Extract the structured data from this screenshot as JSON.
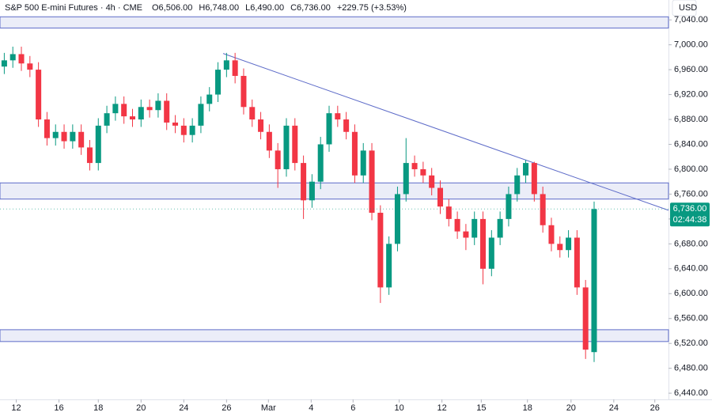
{
  "chart_data": {
    "type": "candlestick",
    "title": "S&P 500 E-mini Futures · 4h · CME",
    "ohlc_labels": [
      "O6,506.00",
      "H6,748.00",
      "L6,490.00",
      "C6,736.00",
      "+229.75 (+3.53%)"
    ],
    "currency": "USD",
    "last_price": {
      "value": 6736,
      "label": "6,736.00"
    },
    "countdown": "02:44:38",
    "up_color": "#089981",
    "down_color": "#f23645",
    "open": [
      6965,
      6975,
      6985,
      6970,
      6960,
      6880,
      6850,
      6860,
      6845,
      6860,
      6835,
      6810,
      6870,
      6890,
      6905,
      6885,
      6880,
      6900,
      6895,
      6910,
      6875,
      6870,
      6855,
      6870,
      6905,
      6920,
      6960,
      6975,
      6950,
      6900,
      6880,
      6860,
      6830,
      6800,
      6870,
      6810,
      6750,
      6780,
      6840,
      6890,
      6880,
      6860,
      6790,
      6830,
      6730,
      6610,
      6680,
      6760,
      6810,
      6800,
      6790,
      6770,
      6740,
      6720,
      6700,
      6690,
      6720,
      6640,
      6690,
      6720,
      6760,
      6790,
      6810,
      6760,
      6710,
      6680,
      6670,
      6690,
      6610,
      6506
    ],
    "high": [
      6987,
      6997,
      6997,
      6982,
      6972,
      6892,
      6872,
      6872,
      6872,
      6872,
      6847,
      6882,
      6902,
      6917,
      6917,
      6897,
      6912,
      6912,
      6922,
      6922,
      6887,
      6882,
      6882,
      6917,
      6932,
      6972,
      6987,
      6987,
      6962,
      6912,
      6892,
      6872,
      6842,
      6882,
      6882,
      6822,
      6792,
      6852,
      6902,
      6902,
      6892,
      6872,
      6842,
      6842,
      6742,
      6692,
      6772,
      6850,
      6822,
      6812,
      6802,
      6782,
      6752,
      6732,
      6712,
      6732,
      6732,
      6702,
      6732,
      6772,
      6802,
      6815,
      6812,
      6772,
      6722,
      6692,
      6702,
      6702,
      6622,
      6748
    ],
    "low": [
      6953,
      6963,
      6958,
      6948,
      6868,
      6838,
      6838,
      6833,
      6833,
      6823,
      6798,
      6798,
      6858,
      6878,
      6873,
      6868,
      6868,
      6883,
      6883,
      6863,
      6858,
      6843,
      6843,
      6858,
      6893,
      6908,
      6948,
      6938,
      6888,
      6868,
      6848,
      6818,
      6770,
      6788,
      6798,
      6720,
      6738,
      6768,
      6828,
      6868,
      6848,
      6778,
      6778,
      6718,
      6585,
      6598,
      6668,
      6748,
      6788,
      6778,
      6758,
      6728,
      6708,
      6688,
      6670,
      6678,
      6615,
      6628,
      6678,
      6708,
      6748,
      6778,
      6748,
      6698,
      6668,
      6658,
      6658,
      6598,
      6495,
      6490
    ],
    "close": [
      6975,
      6985,
      6970,
      6960,
      6880,
      6850,
      6860,
      6845,
      6860,
      6835,
      6810,
      6870,
      6890,
      6905,
      6885,
      6880,
      6900,
      6895,
      6910,
      6875,
      6870,
      6855,
      6870,
      6905,
      6920,
      6960,
      6975,
      6950,
      6900,
      6880,
      6860,
      6830,
      6800,
      6870,
      6810,
      6750,
      6780,
      6840,
      6890,
      6880,
      6860,
      6790,
      6830,
      6730,
      6610,
      6680,
      6760,
      6810,
      6800,
      6790,
      6770,
      6740,
      6720,
      6700,
      6690,
      6720,
      6640,
      6690,
      6720,
      6760,
      6790,
      6810,
      6760,
      6710,
      6680,
      6670,
      6690,
      6610,
      6510,
      6736
    ],
    "zones": [
      [
        7027,
        7045
      ],
      [
        6752,
        6778
      ],
      [
        6523,
        6542
      ]
    ],
    "zone_color": "#5d6bc8",
    "trendline": {
      "x": [
        25.6,
        77.7
      ],
      "y": [
        6986,
        6734
      ]
    },
    "xlim": [
      -0.5,
      77.7
    ],
    "xticks": [
      {
        "value": 1.4,
        "label": "12"
      },
      {
        "value": 6.4,
        "label": "16"
      },
      {
        "value": 11.0,
        "label": "18"
      },
      {
        "value": 16.0,
        "label": "20"
      },
      {
        "value": 21.0,
        "label": "24"
      },
      {
        "value": 26.0,
        "label": "26"
      },
      {
        "value": 30.9,
        "label": "Mar"
      },
      {
        "value": 35.9,
        "label": "4"
      },
      {
        "value": 40.8,
        "label": "6"
      },
      {
        "value": 46.2,
        "label": "10"
      },
      {
        "value": 51.2,
        "label": "12"
      },
      {
        "value": 55.8,
        "label": "15"
      },
      {
        "value": 61.2,
        "label": "18"
      },
      {
        "value": 66.3,
        "label": "20"
      },
      {
        "value": 71.3,
        "label": "24"
      },
      {
        "value": 76.1,
        "label": "26"
      }
    ],
    "ylim": [
      6430,
      7072
    ],
    "yticks": [
      {
        "value": 6440,
        "label": "6,440.00"
      },
      {
        "value": 6480,
        "label": "6,480.00"
      },
      {
        "value": 6520,
        "label": "6,520.00"
      },
      {
        "value": 6560,
        "label": "6,560.00"
      },
      {
        "value": 6600,
        "label": "6,600.00"
      },
      {
        "value": 6640,
        "label": "6,640.00"
      },
      {
        "value": 6680,
        "label": "6,680.00"
      },
      {
        "value": 6720,
        "label": "6,720.00"
      },
      {
        "value": 6760,
        "label": "6,760.00"
      },
      {
        "value": 6800,
        "label": "6,800.00"
      },
      {
        "value": 6840,
        "label": "6,840.00"
      },
      {
        "value": 6880,
        "label": "6,880.00"
      },
      {
        "value": 6920,
        "label": "6,920.00"
      },
      {
        "value": 6960,
        "label": "6,960.00"
      },
      {
        "value": 7000,
        "label": "7,000.00"
      },
      {
        "value": 7040,
        "label": "7,040.00"
      }
    ],
    "grid": false
  }
}
